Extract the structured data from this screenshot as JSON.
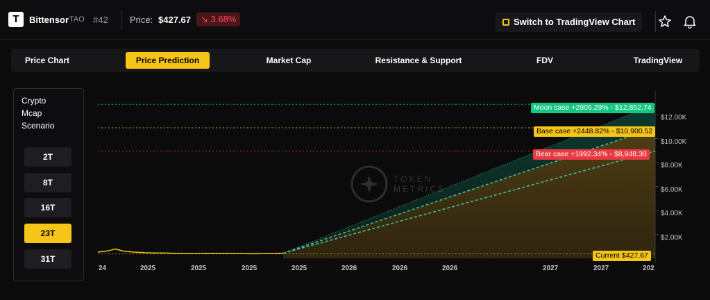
{
  "header": {
    "logo_letter": "T",
    "name": "Bittensor",
    "ticker": "TAO",
    "rank": "#42",
    "price_label": "Price:",
    "price_value": "$427.67",
    "price_change": "↘ 3.68%",
    "tv_button": "Switch to TradingView Chart",
    "star_icon": "star-icon",
    "bell_icon": "bell-icon"
  },
  "tabs": [
    "Price Chart",
    "Price Prediction",
    "Market Cap",
    "Resistance & Support",
    "FDV",
    "TradingView"
  ],
  "active_tab": "Price Prediction",
  "scenario_panel": {
    "title_lines": [
      "Crypto",
      "Mcap",
      "Scenario"
    ],
    "options": [
      "2T",
      "8T",
      "16T",
      "23T",
      "31T"
    ],
    "selected": "23T"
  },
  "watermark": {
    "line1": "TOKEN",
    "line2": "METRICS"
  },
  "colors": {
    "accent": "#f5c518",
    "moon": "#16c784",
    "base": "#f5c518",
    "bear": "#ea3943",
    "down": "#ff4b55"
  },
  "chart_data": {
    "type": "line",
    "y_ticks": [
      "$2.00K",
      "$4.00K",
      "$6.00K",
      "$8.00K",
      "$10.00K",
      "$12.00K"
    ],
    "y_tick_values": [
      2000,
      4000,
      6000,
      8000,
      10000,
      12000
    ],
    "ylim": [
      0,
      13500
    ],
    "x_ticks": [
      "24",
      "2025",
      "2025",
      "2025",
      "2025",
      "2026",
      "2026",
      "2026",
      "2027",
      "2027",
      "202"
    ],
    "current": {
      "label": "Current $427.67",
      "value": 427.67
    },
    "scenarios": [
      {
        "name": "Moon case",
        "label": "Moon case +2905.29% - $12,852.74",
        "value": 12852.74,
        "color": "#16c784"
      },
      {
        "name": "Base case",
        "label": "Base case +2448.82% - $10,900.52",
        "value": 10900.52,
        "color": "#f5c518"
      },
      {
        "name": "Bear case",
        "label": "Bear case +1992.34% - $8,948.30",
        "value": 8948.3,
        "color": "#ea3943"
      }
    ],
    "history": [
      520,
      560,
      600,
      680,
      780,
      690,
      600,
      560,
      530,
      510,
      490,
      470,
      460,
      450,
      440,
      445,
      440,
      430,
      420,
      410,
      400,
      395,
      390,
      395,
      400,
      410,
      420,
      425,
      420,
      415,
      410,
      405,
      400,
      395,
      390,
      385,
      380,
      385,
      390,
      395,
      400,
      410,
      420,
      427.67
    ]
  }
}
